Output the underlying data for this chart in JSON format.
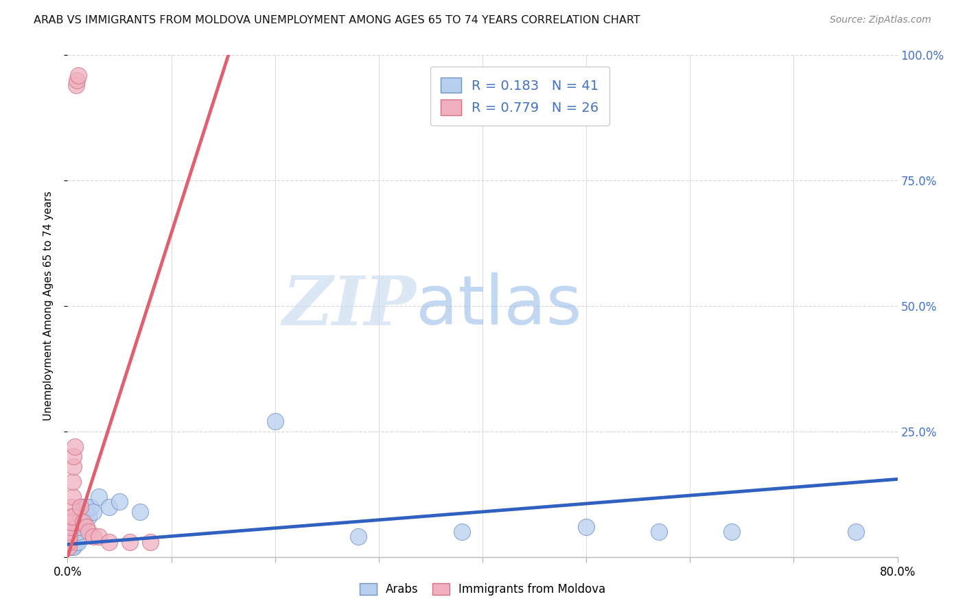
{
  "title": "ARAB VS IMMIGRANTS FROM MOLDOVA UNEMPLOYMENT AMONG AGES 65 TO 74 YEARS CORRELATION CHART",
  "source": "Source: ZipAtlas.com",
  "ylabel": "Unemployment Among Ages 65 to 74 years",
  "legend_label_1": "Arabs",
  "legend_label_2": "Immigrants from Moldova",
  "R1": 0.183,
  "N1": 41,
  "R2": 0.779,
  "N2": 26,
  "color_arab": "#b8d0f0",
  "color_moldova": "#f0b0c0",
  "color_arab_edge": "#7090c0",
  "color_moldova_edge": "#d07080",
  "color_arab_line": "#3060c0",
  "color_moldova_line": "#e06070",
  "color_axis_right": "#4472c4",
  "xlim": [
    0,
    0.8
  ],
  "ylim": [
    0,
    1.0
  ],
  "xtick_positions": [
    0.0,
    0.1,
    0.2,
    0.3,
    0.4,
    0.5,
    0.6,
    0.7,
    0.8
  ],
  "xtick_labels": [
    "0.0%",
    "",
    "",
    "",
    "",
    "",
    "",
    "",
    "80.0%"
  ],
  "yticks_right": [
    0.0,
    0.25,
    0.5,
    0.75,
    1.0
  ],
  "ytick_right_labels": [
    "",
    "25.0%",
    "50.0%",
    "75.0%",
    "100.0%"
  ],
  "watermark_zip": "ZIP",
  "watermark_atlas": "atlas",
  "arab_x": [
    0.001,
    0.002,
    0.002,
    0.003,
    0.003,
    0.004,
    0.004,
    0.005,
    0.005,
    0.005,
    0.006,
    0.006,
    0.007,
    0.007,
    0.008,
    0.008,
    0.009,
    0.01,
    0.01,
    0.011,
    0.012,
    0.013,
    0.014,
    0.015,
    0.016,
    0.017,
    0.018,
    0.02,
    0.022,
    0.025,
    0.03,
    0.04,
    0.05,
    0.07,
    0.2,
    0.28,
    0.38,
    0.5,
    0.57,
    0.64,
    0.76
  ],
  "arab_y": [
    0.02,
    0.02,
    0.03,
    0.02,
    0.04,
    0.02,
    0.03,
    0.02,
    0.03,
    0.04,
    0.02,
    0.05,
    0.03,
    0.04,
    0.03,
    0.05,
    0.04,
    0.03,
    0.05,
    0.06,
    0.08,
    0.09,
    0.1,
    0.07,
    0.08,
    0.09,
    0.1,
    0.08,
    0.1,
    0.09,
    0.12,
    0.1,
    0.11,
    0.09,
    0.27,
    0.04,
    0.05,
    0.06,
    0.05,
    0.05,
    0.05
  ],
  "moldova_x": [
    0.001,
    0.001,
    0.002,
    0.002,
    0.003,
    0.003,
    0.004,
    0.004,
    0.005,
    0.005,
    0.005,
    0.006,
    0.006,
    0.007,
    0.008,
    0.009,
    0.01,
    0.012,
    0.015,
    0.018,
    0.02,
    0.025,
    0.03,
    0.04,
    0.06,
    0.08
  ],
  "moldova_y": [
    0.02,
    0.03,
    0.04,
    0.05,
    0.06,
    0.08,
    0.07,
    0.1,
    0.08,
    0.12,
    0.15,
    0.18,
    0.2,
    0.22,
    0.94,
    0.95,
    0.96,
    0.1,
    0.07,
    0.06,
    0.05,
    0.04,
    0.04,
    0.03,
    0.03,
    0.03
  ],
  "arab_trend_x": [
    0.0,
    0.8
  ],
  "arab_trend_y": [
    0.025,
    0.155
  ],
  "moldova_trend_x": [
    0.0,
    0.155
  ],
  "moldova_trend_y": [
    0.0,
    1.0
  ]
}
